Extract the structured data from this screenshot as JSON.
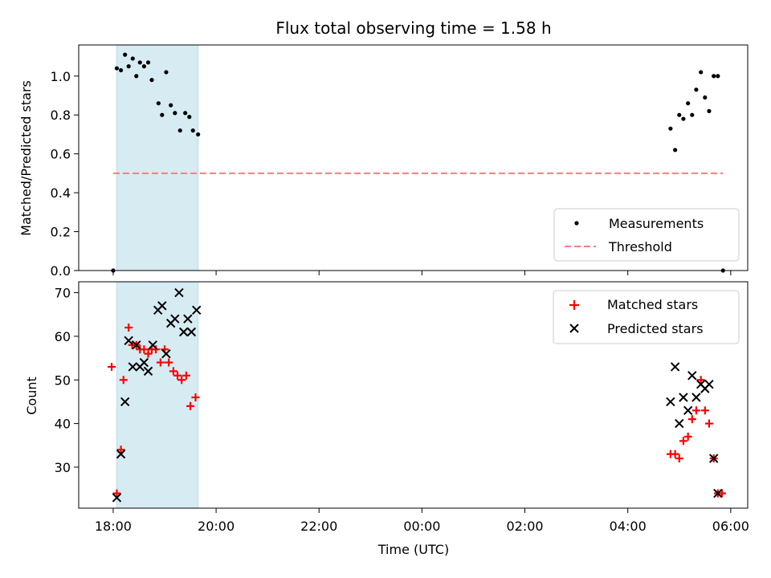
{
  "chart_data": [
    {
      "type": "scatter",
      "title": "Flux total observing time = 1.58 h",
      "xlabel": "",
      "ylabel": "Matched/Predicted stars",
      "ylim": [
        0,
        1.16
      ],
      "yticks": [
        "0.0",
        "0.2",
        "0.4",
        "0.6",
        "0.8",
        "1.0"
      ],
      "xlim_hours": [
        17.33,
        30.33
      ],
      "shaded_interval_hours": [
        18.07,
        19.65
      ],
      "legend": {
        "placement": "lower-right",
        "entries": [
          "Measurements",
          "Threshold"
        ]
      },
      "threshold": {
        "name": "Threshold",
        "value": 0.5,
        "x_range_hours": [
          18.0,
          29.85
        ],
        "color": "#ff7b7b"
      },
      "series": [
        {
          "name": "Measurements",
          "color": "#000000",
          "points": [
            [
              18.0,
              0.0
            ],
            [
              18.07,
              1.04
            ],
            [
              18.15,
              1.03
            ],
            [
              18.23,
              1.11
            ],
            [
              18.3,
              1.05
            ],
            [
              18.38,
              1.09
            ],
            [
              18.45,
              1.0
            ],
            [
              18.52,
              1.07
            ],
            [
              18.6,
              1.05
            ],
            [
              18.68,
              1.07
            ],
            [
              18.75,
              0.98
            ],
            [
              18.88,
              0.86
            ],
            [
              18.95,
              0.8
            ],
            [
              19.03,
              1.02
            ],
            [
              19.12,
              0.85
            ],
            [
              19.2,
              0.81
            ],
            [
              19.3,
              0.72
            ],
            [
              19.4,
              0.81
            ],
            [
              19.48,
              0.79
            ],
            [
              19.55,
              0.72
            ],
            [
              19.65,
              0.7
            ],
            [
              28.83,
              0.73
            ],
            [
              28.92,
              0.62
            ],
            [
              29.0,
              0.8
            ],
            [
              29.08,
              0.78
            ],
            [
              29.17,
              0.86
            ],
            [
              29.25,
              0.8
            ],
            [
              29.33,
              0.93
            ],
            [
              29.42,
              1.02
            ],
            [
              29.5,
              0.89
            ],
            [
              29.58,
              0.82
            ],
            [
              29.67,
              1.0
            ],
            [
              29.75,
              1.0
            ],
            [
              29.85,
              0.0
            ]
          ]
        }
      ]
    },
    {
      "type": "scatter",
      "title": "",
      "xlabel": "Time (UTC)",
      "ylabel": "Count",
      "ylim": [
        20.6,
        72.5
      ],
      "yticks": [
        "30",
        "40",
        "50",
        "60",
        "70"
      ],
      "xticks": [
        "18:00",
        "20:00",
        "22:00",
        "00:00",
        "02:00",
        "04:00",
        "06:00"
      ],
      "xlim_hours": [
        17.33,
        30.33
      ],
      "shaded_interval_hours": [
        18.07,
        19.65
      ],
      "legend": {
        "placement": "upper-right",
        "entries": [
          "Matched stars",
          "Predicted stars"
        ]
      },
      "series": [
        {
          "name": "Matched stars",
          "marker": "plus",
          "color": "#ff0000",
          "points": [
            [
              17.97,
              53
            ],
            [
              18.07,
              24
            ],
            [
              18.15,
              34
            ],
            [
              18.2,
              50
            ],
            [
              18.3,
              62
            ],
            [
              18.37,
              58
            ],
            [
              18.45,
              58
            ],
            [
              18.52,
              57
            ],
            [
              18.6,
              57
            ],
            [
              18.68,
              56
            ],
            [
              18.75,
              57
            ],
            [
              18.83,
              57
            ],
            [
              18.92,
              54
            ],
            [
              19.0,
              57
            ],
            [
              19.08,
              54
            ],
            [
              19.17,
              52
            ],
            [
              19.25,
              51
            ],
            [
              19.33,
              50
            ],
            [
              19.42,
              51
            ],
            [
              19.5,
              44
            ],
            [
              19.6,
              46
            ],
            [
              28.83,
              33
            ],
            [
              28.92,
              33
            ],
            [
              29.0,
              32
            ],
            [
              29.08,
              36
            ],
            [
              29.17,
              37
            ],
            [
              29.25,
              41
            ],
            [
              29.33,
              43
            ],
            [
              29.42,
              50
            ],
            [
              29.5,
              43
            ],
            [
              29.58,
              40
            ],
            [
              29.67,
              32
            ],
            [
              29.75,
              24
            ],
            [
              29.83,
              24
            ]
          ]
        },
        {
          "name": "Predicted stars",
          "marker": "x",
          "color": "#000000",
          "points": [
            [
              18.07,
              23
            ],
            [
              18.15,
              33
            ],
            [
              18.23,
              45
            ],
            [
              18.3,
              59
            ],
            [
              18.38,
              53
            ],
            [
              18.45,
              58
            ],
            [
              18.52,
              53
            ],
            [
              18.6,
              54
            ],
            [
              18.68,
              52
            ],
            [
              18.77,
              58
            ],
            [
              18.87,
              66
            ],
            [
              18.95,
              67
            ],
            [
              19.03,
              56
            ],
            [
              19.12,
              63
            ],
            [
              19.2,
              64
            ],
            [
              19.28,
              70
            ],
            [
              19.37,
              61
            ],
            [
              19.45,
              64
            ],
            [
              19.52,
              61
            ],
            [
              19.62,
              66
            ],
            [
              28.83,
              45
            ],
            [
              28.92,
              53
            ],
            [
              29.0,
              40
            ],
            [
              29.08,
              46
            ],
            [
              29.17,
              43
            ],
            [
              29.25,
              51
            ],
            [
              29.33,
              46
            ],
            [
              29.42,
              49
            ],
            [
              29.5,
              48
            ],
            [
              29.58,
              49
            ],
            [
              29.67,
              32
            ],
            [
              29.75,
              24
            ]
          ]
        }
      ]
    }
  ]
}
